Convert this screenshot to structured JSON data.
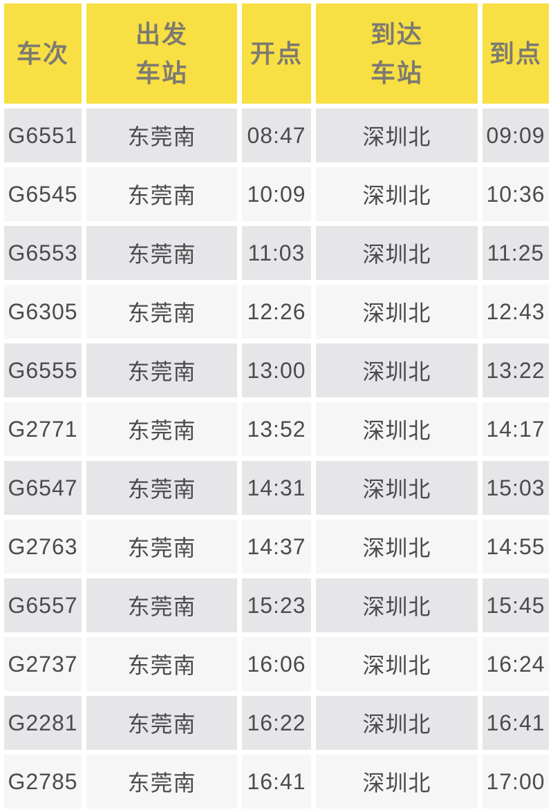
{
  "colors": {
    "header_bg": "#f8df43",
    "header_text": "#7c7a72",
    "row_bg_odd": "#e6e6e8",
    "row_bg_even": "#f6f6f7",
    "row_text": "#4b4b4e",
    "gap_color": "#ffffff"
  },
  "chart_data": {
    "type": "table",
    "columns": [
      {
        "key": "train-number",
        "label": "车次",
        "lines": [
          "车次"
        ]
      },
      {
        "key": "departure-station",
        "label": "出发车站",
        "lines": [
          "出发",
          "车站"
        ]
      },
      {
        "key": "departure-time",
        "label": "开点",
        "lines": [
          "开点"
        ]
      },
      {
        "key": "arrival-station",
        "label": "到达车站",
        "lines": [
          "到达",
          "车站"
        ]
      },
      {
        "key": "arrival-time",
        "label": "到点",
        "lines": [
          "到点"
        ]
      }
    ],
    "rows": [
      [
        "G6551",
        "东莞南",
        "08:47",
        "深圳北",
        "09:09"
      ],
      [
        "G6545",
        "东莞南",
        "10:09",
        "深圳北",
        "10:36"
      ],
      [
        "G6553",
        "东莞南",
        "11:03",
        "深圳北",
        "11:25"
      ],
      [
        "G6305",
        "东莞南",
        "12:26",
        "深圳北",
        "12:43"
      ],
      [
        "G6555",
        "东莞南",
        "13:00",
        "深圳北",
        "13:22"
      ],
      [
        "G2771",
        "东莞南",
        "13:52",
        "深圳北",
        "14:17"
      ],
      [
        "G6547",
        "东莞南",
        "14:31",
        "深圳北",
        "15:03"
      ],
      [
        "G2763",
        "东莞南",
        "14:37",
        "深圳北",
        "14:55"
      ],
      [
        "G6557",
        "东莞南",
        "15:23",
        "深圳北",
        "15:45"
      ],
      [
        "G2737",
        "东莞南",
        "16:06",
        "深圳北",
        "16:24"
      ],
      [
        "G2281",
        "东莞南",
        "16:22",
        "深圳北",
        "16:41"
      ],
      [
        "G2785",
        "东莞南",
        "16:41",
        "深圳北",
        "17:00"
      ]
    ]
  }
}
